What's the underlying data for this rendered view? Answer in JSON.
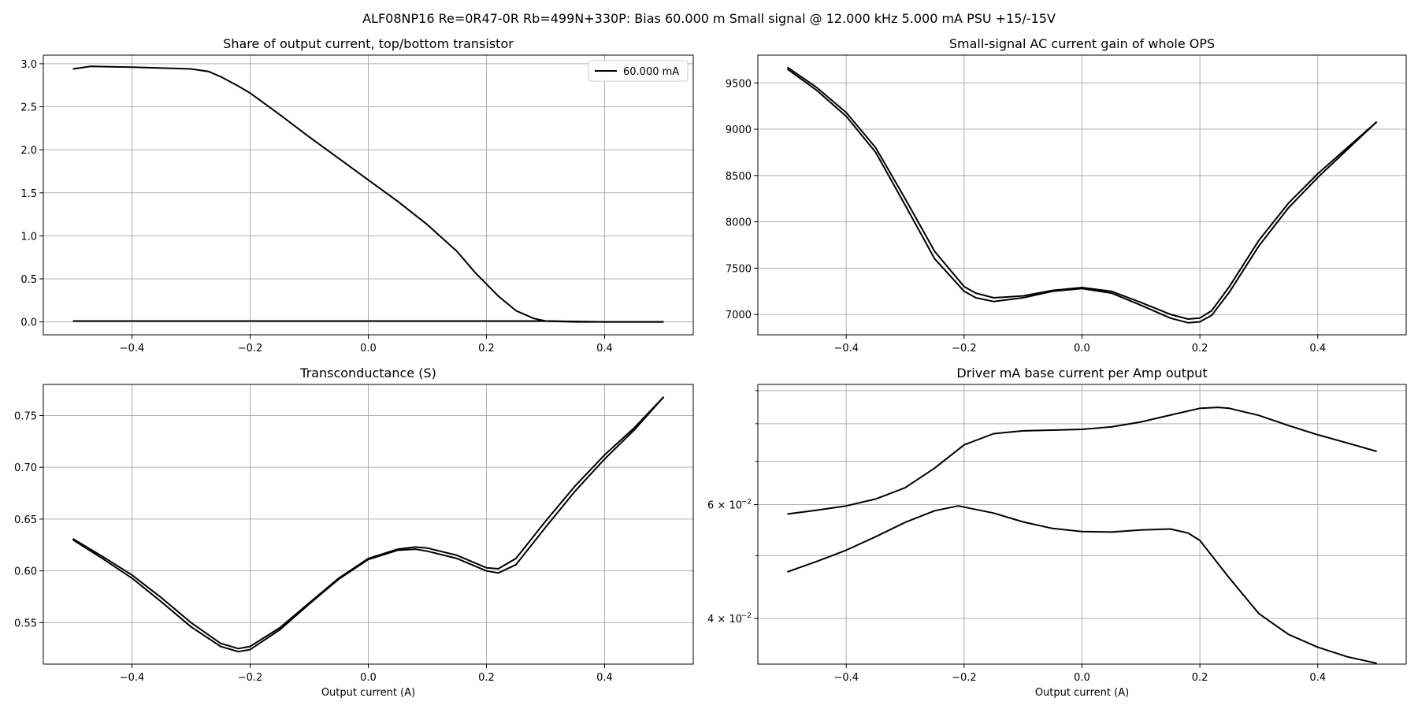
{
  "figure": {
    "suptitle": "ALF08NP16 Re=0R47-0R Rb=499N+330P: Bias 60.000 m Small signal @ 12.000 kHz 5.000 mA PSU +15/-15V"
  },
  "chart_data": [
    {
      "id": "share",
      "type": "line",
      "title": "Share of output current, top/bottom transistor",
      "xlabel": "",
      "ylabel": "",
      "xlim": [
        -0.55,
        0.55
      ],
      "ylim": [
        -0.15,
        3.1
      ],
      "xticks": [
        -0.4,
        -0.2,
        0.0,
        0.2,
        0.4
      ],
      "xtick_labels": [
        "−0.4",
        "−0.2",
        "0.0",
        "0.2",
        "0.4"
      ],
      "yticks": [
        0,
        0.5,
        1,
        1.5,
        2,
        2.5,
        3
      ],
      "ytick_labels": [
        "0.0",
        "0.5",
        "1.0",
        "1.5",
        "2.0",
        "2.5",
        "3.0"
      ],
      "grid": true,
      "legend": {
        "placement": "top-right",
        "entries": [
          "60.000 mA"
        ]
      },
      "series": [
        {
          "name": "60.000 mA",
          "color": "#000000",
          "x": [
            -0.5,
            -0.47,
            -0.4,
            -0.35,
            -0.3,
            -0.27,
            -0.25,
            -0.22,
            -0.2,
            -0.15,
            -0.1,
            -0.05,
            0,
            0.05,
            0.1,
            0.15,
            0.18,
            0.2,
            0.22,
            0.25,
            0.28,
            0.3,
            0.35,
            0.4,
            0.5
          ],
          "y": [
            2.94,
            2.97,
            2.96,
            2.95,
            2.94,
            2.91,
            2.85,
            2.74,
            2.66,
            2.41,
            2.15,
            1.9,
            1.65,
            1.4,
            1.13,
            0.82,
            0.58,
            0.44,
            0.3,
            0.13,
            0.04,
            0.01,
            0.0,
            0.0,
            0.0
          ]
        },
        {
          "name": "",
          "color": "#000000",
          "x": [
            -0.5,
            -0.4,
            -0.3,
            -0.2,
            -0.1,
            0,
            0.1,
            0.2,
            0.3,
            0.4,
            0.5
          ],
          "y": [
            0.01,
            0.01,
            0.01,
            0.01,
            0.01,
            0.01,
            0.01,
            0.01,
            0.01,
            0.0,
            0.0
          ]
        }
      ]
    },
    {
      "id": "gain",
      "type": "line",
      "title": "Small-signal AC current gain of whole OPS",
      "xlabel": "",
      "ylabel": "",
      "xlim": [
        -0.55,
        0.55
      ],
      "ylim": [
        6780,
        9800
      ],
      "xticks": [
        -0.4,
        -0.2,
        0.0,
        0.2,
        0.4
      ],
      "xtick_labels": [
        "−0.4",
        "−0.2",
        "0.0",
        "0.2",
        "0.4"
      ],
      "yticks": [
        7000,
        7500,
        8000,
        8500,
        9000,
        9500
      ],
      "ytick_labels": [
        "7000",
        "7500",
        "8000",
        "8500",
        "9000",
        "9500"
      ],
      "grid": true,
      "series": [
        {
          "name": "",
          "color": "#000000",
          "x": [
            -0.5,
            -0.45,
            -0.4,
            -0.35,
            -0.3,
            -0.25,
            -0.2,
            -0.18,
            -0.15,
            -0.1,
            -0.05,
            0,
            0.05,
            0.1,
            0.15,
            0.18,
            0.2,
            0.22,
            0.25,
            0.3,
            0.35,
            0.4,
            0.45,
            0.5
          ],
          "y": [
            9670,
            9450,
            9180,
            8800,
            8250,
            7680,
            7300,
            7230,
            7180,
            7200,
            7260,
            7290,
            7250,
            7130,
            7000,
            6950,
            6960,
            7040,
            7300,
            7800,
            8200,
            8520,
            8800,
            9080
          ]
        },
        {
          "name": "",
          "color": "#000000",
          "x": [
            -0.5,
            -0.45,
            -0.4,
            -0.35,
            -0.3,
            -0.25,
            -0.2,
            -0.18,
            -0.15,
            -0.1,
            -0.05,
            0,
            0.05,
            0.1,
            0.15,
            0.18,
            0.2,
            0.22,
            0.25,
            0.3,
            0.35,
            0.4,
            0.45,
            0.5
          ],
          "y": [
            9650,
            9420,
            9140,
            8750,
            8180,
            7600,
            7250,
            7180,
            7140,
            7180,
            7250,
            7280,
            7230,
            7100,
            6960,
            6910,
            6920,
            6990,
            7240,
            7740,
            8150,
            8480,
            8780,
            9080
          ]
        }
      ]
    },
    {
      "id": "gm",
      "type": "line",
      "title": "Transconductance (S)",
      "xlabel": "Output current (A)",
      "ylabel": "",
      "xlim": [
        -0.55,
        0.55
      ],
      "ylim": [
        0.51,
        0.78
      ],
      "xticks": [
        -0.4,
        -0.2,
        0.0,
        0.2,
        0.4
      ],
      "xtick_labels": [
        "−0.4",
        "−0.2",
        "0.0",
        "0.2",
        "0.4"
      ],
      "yticks": [
        0.55,
        0.6,
        0.65,
        0.7,
        0.75
      ],
      "ytick_labels": [
        "0.55",
        "0.60",
        "0.65",
        "0.70",
        "0.75"
      ],
      "grid": true,
      "series": [
        {
          "name": "",
          "color": "#000000",
          "x": [
            -0.5,
            -0.45,
            -0.4,
            -0.35,
            -0.3,
            -0.25,
            -0.22,
            -0.2,
            -0.15,
            -0.1,
            -0.05,
            0,
            0.05,
            0.08,
            0.1,
            0.15,
            0.2,
            0.22,
            0.25,
            0.3,
            0.35,
            0.4,
            0.45,
            0.5
          ],
          "y": [
            0.631,
            0.614,
            0.596,
            0.574,
            0.55,
            0.53,
            0.525,
            0.527,
            0.545,
            0.569,
            0.593,
            0.612,
            0.621,
            0.623,
            0.622,
            0.615,
            0.603,
            0.602,
            0.612,
            0.648,
            0.682,
            0.712,
            0.738,
            0.768
          ]
        },
        {
          "name": "",
          "color": "#000000",
          "x": [
            -0.5,
            -0.45,
            -0.4,
            -0.35,
            -0.3,
            -0.25,
            -0.22,
            -0.2,
            -0.15,
            -0.1,
            -0.05,
            0,
            0.05,
            0.08,
            0.1,
            0.15,
            0.2,
            0.22,
            0.25,
            0.3,
            0.35,
            0.4,
            0.45,
            0.5
          ],
          "y": [
            0.63,
            0.612,
            0.593,
            0.57,
            0.546,
            0.527,
            0.522,
            0.524,
            0.543,
            0.568,
            0.592,
            0.611,
            0.62,
            0.621,
            0.619,
            0.612,
            0.6,
            0.598,
            0.606,
            0.642,
            0.677,
            0.708,
            0.736,
            0.768
          ]
        }
      ]
    },
    {
      "id": "driver",
      "type": "line",
      "title": "Driver mA base current per Amp output",
      "xlabel": "Output current (A)",
      "ylabel": "",
      "yscale": "log",
      "xlim": [
        -0.55,
        0.55
      ],
      "ylim": [
        0.034,
        0.092
      ],
      "xticks": [
        -0.4,
        -0.2,
        0.0,
        0.2,
        0.4
      ],
      "xtick_labels": [
        "−0.4",
        "−0.2",
        "0.0",
        "0.2",
        "0.4"
      ],
      "yticks": [
        0.04,
        0.06
      ],
      "ytick_labels": [
        "4 × 10",
        "6 × 10"
      ],
      "ytick_exponent": "−2",
      "y_minor_gridlines": [
        0.05,
        0.07,
        0.08,
        0.09
      ],
      "grid": true,
      "series": [
        {
          "name": "",
          "color": "#000000",
          "x": [
            -0.5,
            -0.45,
            -0.4,
            -0.35,
            -0.3,
            -0.25,
            -0.2,
            -0.15,
            -0.1,
            -0.05,
            0,
            0.05,
            0.1,
            0.15,
            0.2,
            0.23,
            0.25,
            0.3,
            0.35,
            0.4,
            0.45,
            0.5
          ],
          "y": [
            0.058,
            0.0588,
            0.0597,
            0.0612,
            0.0637,
            0.0683,
            0.0742,
            0.0772,
            0.078,
            0.0782,
            0.0784,
            0.0791,
            0.0805,
            0.0825,
            0.0845,
            0.0848,
            0.0845,
            0.0824,
            0.0795,
            0.0769,
            0.0747,
            0.0725
          ]
        },
        {
          "name": "",
          "color": "#000000",
          "x": [
            -0.5,
            -0.45,
            -0.4,
            -0.35,
            -0.3,
            -0.25,
            -0.21,
            -0.15,
            -0.1,
            -0.05,
            0,
            0.05,
            0.1,
            0.15,
            0.18,
            0.2,
            0.25,
            0.3,
            0.35,
            0.4,
            0.45,
            0.5
          ],
          "y": [
            0.0472,
            0.049,
            0.051,
            0.0535,
            0.0563,
            0.0587,
            0.0597,
            0.0582,
            0.0564,
            0.0551,
            0.0545,
            0.0544,
            0.0548,
            0.055,
            0.0542,
            0.0528,
            0.0462,
            0.0407,
            0.0378,
            0.0361,
            0.0349,
            0.0341
          ]
        }
      ]
    }
  ]
}
